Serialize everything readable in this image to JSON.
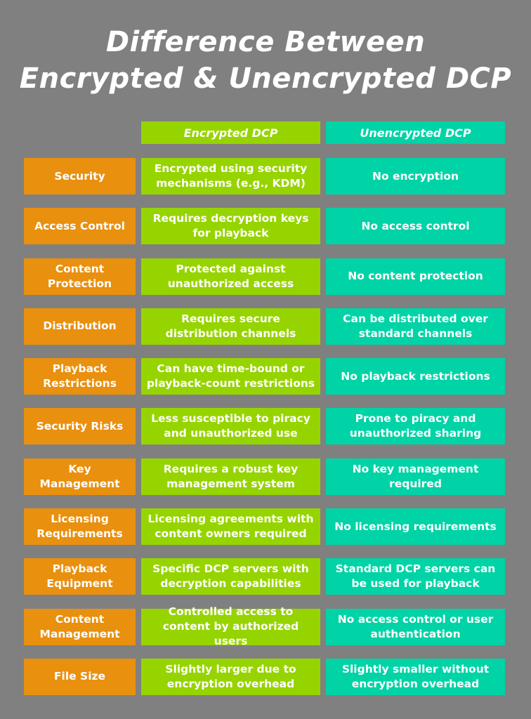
{
  "title": {
    "line1": "Difference Between",
    "line2": "Encrypted & Unencrypted DCP"
  },
  "columns": {
    "encrypted": "Encrypted DCP",
    "unencrypted": "Unencrypted DCP"
  },
  "colors": {
    "background": "#808080",
    "category": "#e9900e",
    "encrypted": "#96d400",
    "unencrypted": "#00d3a6"
  },
  "rows": [
    {
      "category": "Security",
      "encrypted": "Encrypted using security mechanisms (e.g., KDM)",
      "unencrypted": "No encryption"
    },
    {
      "category": "Access Control",
      "encrypted": "Requires decryption keys for playback",
      "unencrypted": "No access control"
    },
    {
      "category": "Content Protection",
      "encrypted": "Protected against unauthorized access",
      "unencrypted": "No content protection"
    },
    {
      "category": "Distribution",
      "encrypted": "Requires secure distribution channels",
      "unencrypted": "Can be distributed over standard channels"
    },
    {
      "category": "Playback Restrictions",
      "encrypted": "Can have time-bound or playback-count restrictions",
      "unencrypted": "No playback restrictions"
    },
    {
      "category": "Security Risks",
      "encrypted": "Less susceptible to piracy and unauthorized use",
      "unencrypted": "Prone to piracy and unauthorized sharing"
    },
    {
      "category": "Key Management",
      "encrypted": "Requires a robust key management system",
      "unencrypted": "No key management required"
    },
    {
      "category": "Licensing Requirements",
      "encrypted": "Licensing agreements with content owners required",
      "unencrypted": "No licensing requirements"
    },
    {
      "category": "Playback Equipment",
      "encrypted": "Specific DCP servers with decryption capabilities",
      "unencrypted": "Standard DCP servers can be used for playback"
    },
    {
      "category": "Content Management",
      "encrypted": "Controlled access to content by authorized users",
      "unencrypted": "No access control or user authentication"
    },
    {
      "category": "File Size",
      "encrypted": "Slightly larger due to encryption overhead",
      "unencrypted": "Slightly smaller without encryption overhead"
    }
  ]
}
